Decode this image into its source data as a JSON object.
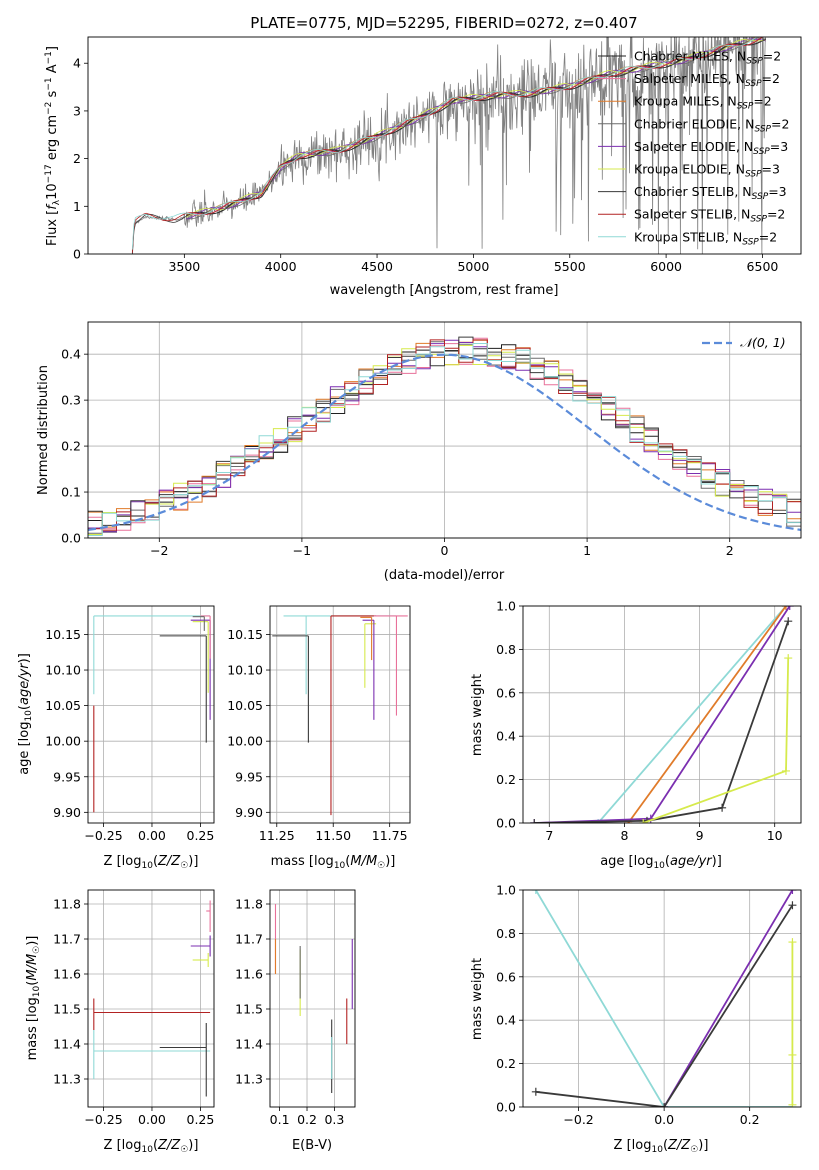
{
  "colors": {
    "chabrier_miles": "#1f1f1f",
    "salpeter_miles": "#e8719a",
    "kroupa_miles": "#e07b2a",
    "chabrier_elodie": "#6b6b6b",
    "salpeter_elodie": "#7b2fb0",
    "kroupa_elodie": "#d6ea4c",
    "chabrier_stelib": "#3a3a3a",
    "salpeter_stelib": "#b22222",
    "kroupa_stelib": "#8fd9d6",
    "gaussian": "#5b8bd9",
    "data": "#808080"
  },
  "chart_data": [
    {
      "id": "spectrum",
      "type": "line",
      "title": "PLATE=0775, MJD=52295, FIBERID=0272, z=0.407",
      "xlabel": "wavelength [Angstrom, rest frame]",
      "ylabel": "Flux [f_λ10^-17 erg cm^-2 s^-1 A^-1]",
      "xlim": [
        3000,
        6700
      ],
      "ylim": [
        0,
        4.55
      ],
      "xticks": [
        "3500",
        "4000",
        "4500",
        "5000",
        "5500",
        "6000",
        "6500"
      ],
      "yticks": [
        "0",
        "1",
        "2",
        "3",
        "4"
      ],
      "grid": false,
      "legend_position": "top-right",
      "legend": [
        "Chabrier MILES, N_SSP=2",
        "Salpeter MILES, N_SSP=2",
        "Kroupa MILES, N_SSP=2",
        "Chabrier ELODIE, N_SSP=2",
        "Salpeter ELODIE, N_SSP=3",
        "Kroupa ELODIE, N_SSP=3",
        "Chabrier STELIB, N_SSP=3",
        "Salpeter STELIB, N_SSP=2",
        "Kroupa STELIB, N_SSP=2"
      ],
      "continuum": [
        [
          3230,
          0
        ],
        [
          3240,
          0.65
        ],
        [
          3300,
          0.78
        ],
        [
          3450,
          0.72
        ],
        [
          3600,
          0.85
        ],
        [
          3700,
          0.95
        ],
        [
          3800,
          1.1
        ],
        [
          3900,
          1.25
        ],
        [
          4000,
          1.8
        ],
        [
          4100,
          2.05
        ],
        [
          4300,
          2.15
        ],
        [
          4500,
          2.45
        ],
        [
          4700,
          2.8
        ],
        [
          4900,
          3.2
        ],
        [
          5100,
          3.3
        ],
        [
          5300,
          3.35
        ],
        [
          5500,
          3.5
        ],
        [
          5700,
          3.75
        ],
        [
          5900,
          3.9
        ],
        [
          6100,
          4.05
        ],
        [
          6300,
          4.3
        ],
        [
          6500,
          4.5
        ]
      ]
    },
    {
      "id": "residuals",
      "type": "line",
      "xlabel": "(data-model)/error",
      "ylabel": "Normed distribution",
      "xlim": [
        -2.5,
        2.5
      ],
      "ylim": [
        0,
        0.47
      ],
      "xticks": [
        "−2",
        "−1",
        "0",
        "1",
        "2"
      ],
      "yticks": [
        "0.0",
        "0.1",
        "0.2",
        "0.3",
        "0.4"
      ],
      "grid": true,
      "legend_position": "top-right",
      "legend": [
        "𝒩(0, 1)"
      ],
      "gaussian": {
        "mu": 0,
        "sigma": 1
      }
    },
    {
      "id": "age-vs-z",
      "type": "scatter",
      "xlabel": "Z [log10(Z/Z☉)]",
      "ylabel": "age  [log10(age/yr)]",
      "xlim": [
        -0.33,
        0.32
      ],
      "ylim": [
        9.885,
        10.19
      ],
      "xticks": [
        "−0.25",
        "0.00",
        "0.25"
      ],
      "yticks": [
        "9.90",
        "9.95",
        "10.00",
        "10.05",
        "10.10",
        "10.15"
      ],
      "grid": true,
      "points": [
        {
          "series": "kroupa_stelib",
          "x": -0.3,
          "y": 10.176,
          "xerr": [
            0,
            0.6
          ],
          "yerr": [
            0.11,
            0
          ]
        },
        {
          "series": "salpeter_stelib",
          "x": -0.3,
          "y": 10.05,
          "xerr": [
            0,
            0
          ],
          "yerr": [
            0.15,
            0
          ]
        },
        {
          "series": "chabrier_stelib",
          "x": 0.28,
          "y": 10.148,
          "xerr": [
            0.24,
            0
          ],
          "yerr": [
            0.15,
            0
          ]
        },
        {
          "series": "salpeter_elodie",
          "x": 0.3,
          "y": 10.17,
          "xerr": [
            0.1,
            0
          ],
          "yerr": [
            0.14,
            0
          ]
        },
        {
          "series": "kroupa_elodie",
          "x": 0.29,
          "y": 10.168,
          "xerr": [
            0.08,
            0
          ],
          "yerr": [
            0.1,
            0
          ]
        },
        {
          "series": "salpeter_miles",
          "x": 0.3,
          "y": 10.176,
          "xerr": [
            0.05,
            0
          ],
          "yerr": [
            0.06,
            0
          ]
        },
        {
          "series": "chabrier_elodie",
          "x": 0.27,
          "y": 10.175,
          "xerr": [
            0.06,
            0
          ],
          "yerr": [
            0.02,
            0
          ]
        }
      ]
    },
    {
      "id": "age-vs-mass",
      "type": "scatter",
      "xlabel": "mass [log10(M/M☉)]",
      "ylabel": "",
      "xlim": [
        11.22,
        11.84
      ],
      "ylim": [
        9.885,
        10.19
      ],
      "xticks": [
        "11.25",
        "11.50",
        "11.75"
      ],
      "yticks": [
        "9.90",
        "9.95",
        "10.00",
        "10.05",
        "10.10",
        "10.15"
      ],
      "grid": true,
      "points": [
        {
          "series": "kroupa_stelib",
          "x": 11.38,
          "y": 10.176,
          "xerr": [
            0.1,
            0.4
          ],
          "yerr": [
            0.11,
            0
          ]
        },
        {
          "series": "chabrier_stelib",
          "x": 11.39,
          "y": 10.148,
          "xerr": [
            0.16,
            0
          ],
          "yerr": [
            0.15,
            0
          ]
        },
        {
          "series": "salpeter_stelib",
          "x": 11.49,
          "y": 10.176,
          "xerr": [
            0,
            0.2
          ],
          "yerr": [
            0.28,
            0
          ]
        },
        {
          "series": "kroupa_elodie",
          "x": 11.64,
          "y": 10.165,
          "xerr": [
            0,
            0.05
          ],
          "yerr": [
            0.09,
            0
          ]
        },
        {
          "series": "salpeter_elodie",
          "x": 11.68,
          "y": 10.17,
          "xerr": [
            0.05,
            0
          ],
          "yerr": [
            0.14,
            0
          ]
        },
        {
          "series": "salpeter_miles",
          "x": 11.78,
          "y": 10.176,
          "xerr": [
            0.1,
            0.05
          ],
          "yerr": [
            0.14,
            0
          ]
        },
        {
          "series": "kroupa_miles",
          "x": 11.67,
          "y": 10.174,
          "xerr": [
            0.05,
            0
          ],
          "yerr": [
            0.06,
            0
          ]
        }
      ]
    },
    {
      "id": "weight-vs-age",
      "type": "line",
      "xlabel": "age  [log10(age/yr)]",
      "ylabel": "mass weight",
      "xlim": [
        6.65,
        10.35
      ],
      "ylim": [
        0,
        1.0
      ],
      "xticks": [
        "7",
        "8",
        "9",
        "10"
      ],
      "yticks": [
        "0.0",
        "0.2",
        "0.4",
        "0.6",
        "0.8",
        "1.0"
      ],
      "grid": true,
      "series": [
        {
          "series": "kroupa_stelib",
          "x": [
            7.65,
            10.15
          ],
          "y": [
            0,
            1.0
          ]
        },
        {
          "series": "kroupa_miles",
          "x": [
            8.05,
            10.15
          ],
          "y": [
            0,
            1.0
          ]
        },
        {
          "series": "salpeter_elodie",
          "x": [
            6.8,
            8.35,
            10.2
          ],
          "y": [
            0,
            0.02,
            1.0
          ]
        },
        {
          "series": "chabrier_stelib",
          "x": [
            6.8,
            8.3,
            9.3,
            10.18
          ],
          "y": [
            0,
            0.01,
            0.07,
            0.93
          ]
        },
        {
          "series": "kroupa_elodie",
          "x": [
            8.25,
            10.15,
            10.18
          ],
          "y": [
            0,
            0.24,
            0.76
          ]
        }
      ]
    },
    {
      "id": "mass-vs-z",
      "type": "scatter",
      "xlabel": "Z [log10(Z/Z☉)]",
      "ylabel": "mass [log10(M/M☉)]",
      "xlim": [
        -0.33,
        0.32
      ],
      "ylim": [
        11.22,
        11.84
      ],
      "xticks": [
        "−0.25",
        "0.00",
        "0.25"
      ],
      "yticks": [
        "11.3",
        "11.4",
        "11.5",
        "11.6",
        "11.7",
        "11.8"
      ],
      "grid": true,
      "points": [
        {
          "series": "salpeter_stelib",
          "x": -0.3,
          "y": 11.49,
          "xerr": [
            0,
            0.6
          ],
          "yerr": [
            0.05,
            0.04
          ]
        },
        {
          "series": "kroupa_stelib",
          "x": -0.3,
          "y": 11.38,
          "xerr": [
            0,
            0.6
          ],
          "yerr": [
            0.08,
            0.06
          ]
        },
        {
          "series": "chabrier_stelib",
          "x": 0.28,
          "y": 11.39,
          "xerr": [
            0.24,
            0
          ],
          "yerr": [
            0.14,
            0.07
          ]
        },
        {
          "series": "salpeter_elodie",
          "x": 0.3,
          "y": 11.68,
          "xerr": [
            0.1,
            0
          ],
          "yerr": [
            0.03,
            0.03
          ]
        },
        {
          "series": "kroupa_elodie",
          "x": 0.29,
          "y": 11.64,
          "xerr": [
            0.08,
            0
          ],
          "yerr": [
            0.02,
            0.02
          ]
        },
        {
          "series": "salpeter_miles",
          "x": 0.3,
          "y": 11.78,
          "xerr": [
            0.02,
            0
          ],
          "yerr": [
            0.06,
            0.03
          ]
        }
      ]
    },
    {
      "id": "mass-vs-ebv",
      "type": "scatter",
      "xlabel": "E(B-V)",
      "ylabel": "",
      "xlim": [
        0.065,
        0.375
      ],
      "ylim": [
        11.22,
        11.84
      ],
      "xticks": [
        "0.1",
        "0.2",
        "0.3"
      ],
      "yticks": [
        "11.3",
        "11.4",
        "11.5",
        "11.6",
        "11.7",
        "11.8"
      ],
      "grid": true,
      "points": [
        {
          "series": "salpeter_miles",
          "x": 0.085,
          "y": 11.7,
          "xerr": [
            0,
            0
          ],
          "yerr": [
            0.1,
            0.1
          ]
        },
        {
          "series": "kroupa_miles",
          "x": 0.085,
          "y": 11.68,
          "xerr": [
            0,
            0
          ],
          "yerr": [
            0.08,
            0.02
          ]
        },
        {
          "series": "kroupa_elodie",
          "x": 0.175,
          "y": 11.58,
          "xerr": [
            0,
            0
          ],
          "yerr": [
            0.1,
            0.09
          ]
        },
        {
          "series": "chabrier_elodie",
          "x": 0.175,
          "y": 11.6,
          "xerr": [
            0,
            0
          ],
          "yerr": [
            0.07,
            0.08
          ]
        },
        {
          "series": "chabrier_stelib",
          "x": 0.29,
          "y": 11.38,
          "xerr": [
            0,
            0
          ],
          "yerr": [
            0.12,
            0.09
          ]
        },
        {
          "series": "kroupa_stelib",
          "x": 0.29,
          "y": 11.36,
          "xerr": [
            0,
            0
          ],
          "yerr": [
            0.06,
            0.06
          ]
        },
        {
          "series": "salpeter_stelib",
          "x": 0.345,
          "y": 11.47,
          "xerr": [
            0,
            0
          ],
          "yerr": [
            0.07,
            0.06
          ]
        },
        {
          "series": "salpeter_elodie",
          "x": 0.365,
          "y": 11.6,
          "xerr": [
            0,
            0
          ],
          "yerr": [
            0.1,
            0.1
          ]
        }
      ]
    },
    {
      "id": "weight-vs-z",
      "type": "line",
      "xlabel": "Z [log10(Z/Z☉)]",
      "ylabel": "mass weight",
      "xlim": [
        -0.33,
        0.32
      ],
      "ylim": [
        0,
        1.0
      ],
      "xticks": [
        "−0.2",
        "0.0",
        "0.2"
      ],
      "yticks": [
        "0.0",
        "0.2",
        "0.4",
        "0.6",
        "0.8",
        "1.0"
      ],
      "grid": true,
      "series": [
        {
          "series": "kroupa_stelib",
          "x": [
            -0.3,
            0,
            0.3
          ],
          "y": [
            1.0,
            0,
            0
          ]
        },
        {
          "series": "salpeter_elodie",
          "x": [
            0,
            0.3
          ],
          "y": [
            0,
            1.0
          ]
        },
        {
          "series": "chabrier_stelib",
          "x": [
            -0.3,
            0,
            0.3
          ],
          "y": [
            0.07,
            0,
            0.93
          ]
        },
        {
          "series": "kroupa_elodie",
          "x": [
            0.3,
            0.3,
            0.3
          ],
          "y": [
            0.01,
            0.24,
            0.76
          ]
        }
      ]
    }
  ]
}
